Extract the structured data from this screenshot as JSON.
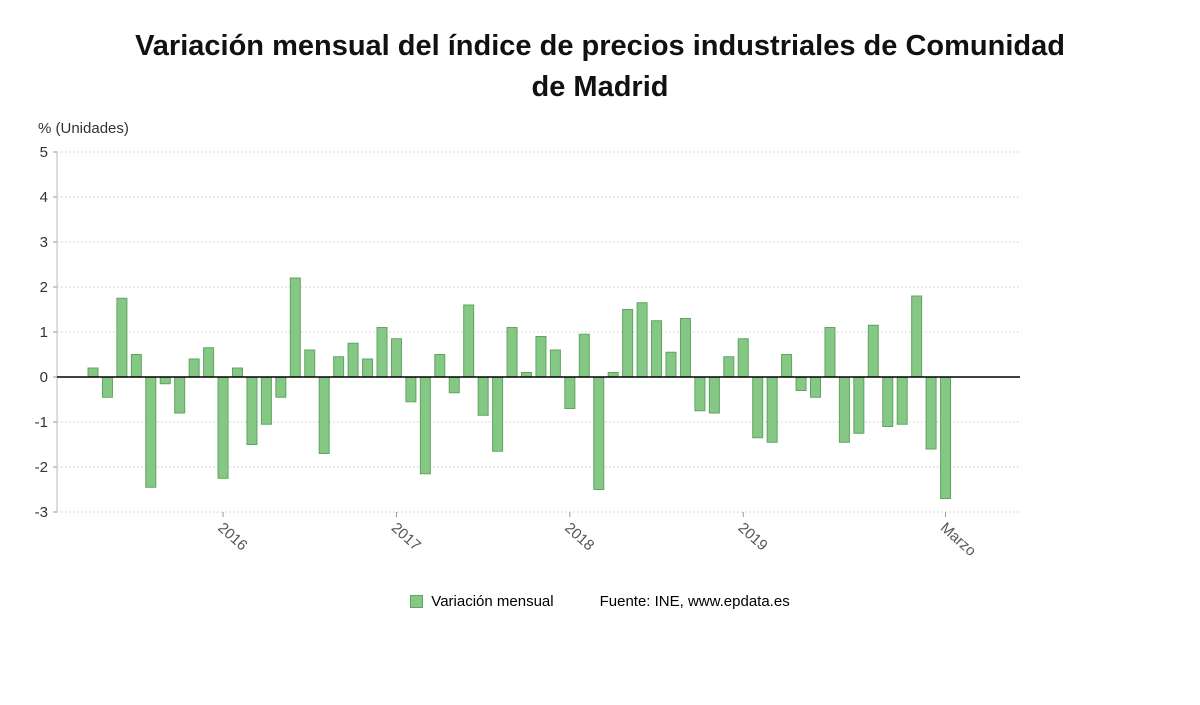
{
  "page": {
    "title_line1": "Variación mensual del índice de precios industriales de Comunidad",
    "title_line2": "de Madrid"
  },
  "chart_data": {
    "type": "bar",
    "title": "Variación mensual del índice de precios industriales de Comunidad de Madrid",
    "ylabel": "% (Unidades)",
    "ylim": [
      -3,
      5
    ],
    "y_ticks": [
      5,
      4,
      3,
      2,
      1,
      0,
      -1,
      -2,
      -3
    ],
    "grid": true,
    "legend": "Variación mensual",
    "legend_position": "bottom",
    "source": "Fuente: INE, www.epdata.es",
    "bar_color": "#85C785",
    "bar_border_color": "#5FA55F",
    "values": [
      0.2,
      -0.45,
      1.75,
      0.5,
      -2.45,
      -0.15,
      -0.8,
      0.4,
      0.65,
      -2.25,
      0.2,
      -1.5,
      -1.05,
      -0.45,
      2.2,
      0.6,
      -1.7,
      0.45,
      0.75,
      0.4,
      1.1,
      0.85,
      -0.55,
      -2.15,
      0.5,
      -0.35,
      1.6,
      -0.85,
      -1.65,
      1.1,
      0.1,
      0.9,
      0.6,
      -0.7,
      0.95,
      -2.5,
      0.1,
      1.5,
      1.65,
      1.25,
      0.55,
      1.3,
      -0.75,
      -0.8,
      0.45,
      0.85,
      -1.35,
      -1.45,
      0.5,
      -0.3,
      -0.45,
      1.1,
      -1.45,
      -1.25,
      1.15,
      -1.1,
      -1.05,
      1.8,
      -1.6,
      -2.7
    ],
    "x_ticks": [
      {
        "label": "2016",
        "index": 9
      },
      {
        "label": "2017",
        "index": 21
      },
      {
        "label": "2018",
        "index": 33
      },
      {
        "label": "2019",
        "index": 45
      },
      {
        "label": "Marzo",
        "index": 59
      }
    ]
  }
}
